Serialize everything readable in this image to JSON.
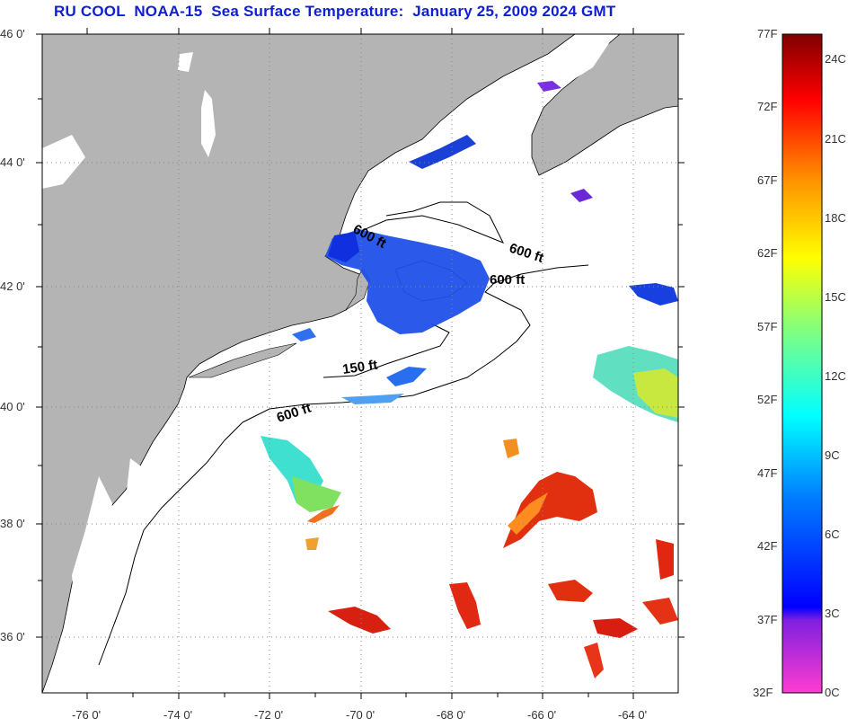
{
  "title": "RU COOL  NOAA-15  Sea Surface Temperature:  January 25, 2009 2024 GMT",
  "latitude_labels": [
    "46 0'",
    "44 0'",
    "42 0'",
    "40 0'",
    "38 0'",
    "36 0'"
  ],
  "longitude_labels": [
    "-76 0'",
    "-74 0'",
    "-72 0'",
    "-70 0'",
    "-68 0'",
    "-66 0'",
    "-64 0'"
  ],
  "contour_labels": [
    "600 ft",
    "600 ft",
    "600 ft",
    "150 ft",
    "600 ft"
  ],
  "colorbar": {
    "fahrenheit": [
      "77F",
      "72F",
      "67F",
      "62F",
      "57F",
      "52F",
      "47F",
      "42F",
      "37F",
      "32F"
    ],
    "celsius": [
      "24C",
      "21C",
      "18C",
      "15C",
      "12C",
      "9C",
      "6C",
      "3C",
      "0C"
    ]
  },
  "colors": {
    "land": "#b4b4b4",
    "title": "#1020d0"
  }
}
